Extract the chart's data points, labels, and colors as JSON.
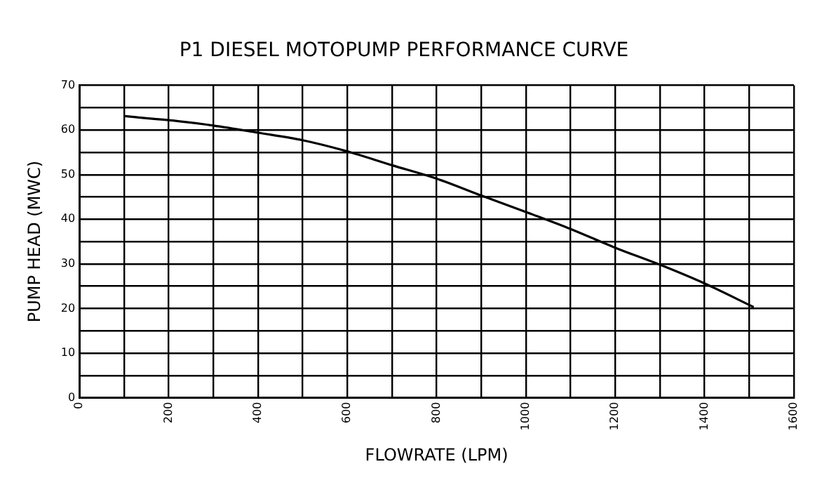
{
  "chart_data": {
    "type": "line",
    "title": "P1 DIESEL MOTOPUMP PERFORMANCE CURVE",
    "xlabel": "FLOWRATE (LPM)",
    "ylabel": "PUMP HEAD (MWC)",
    "x": [
      100,
      200,
      300,
      400,
      500,
      600,
      700,
      800,
      900,
      1000,
      1100,
      1200,
      1300,
      1400,
      1510
    ],
    "series": [
      {
        "color": "#000000",
        "values": [
          63.1,
          62.2,
          61,
          59.4,
          57.7,
          55.2,
          52.1,
          49.1,
          45.3,
          41.6,
          37.8,
          33.6,
          29.8,
          25.6,
          20.3
        ]
      }
    ],
    "xlim": [
      0,
      1600
    ],
    "xticks": [
      0,
      {
        "value": 100,
        "label": null
      },
      200,
      {
        "value": 300,
        "label": null
      },
      400,
      {
        "value": 500,
        "label": null
      },
      600,
      {
        "value": 700,
        "label": null
      },
      800,
      {
        "value": 900,
        "label": null
      },
      1000,
      {
        "value": 1100,
        "label": null
      },
      1200,
      {
        "value": 1300,
        "label": null
      },
      1400,
      {
        "value": 1500,
        "label": null
      },
      1600
    ],
    "ylim": [
      0,
      70
    ],
    "yticks": [
      0,
      {
        "value": 5,
        "label": null
      },
      10,
      {
        "value": 15,
        "label": null
      },
      20,
      {
        "value": 25,
        "label": null
      },
      30,
      {
        "value": 35,
        "label": null
      },
      40,
      {
        "value": 45,
        "label": null
      },
      50,
      {
        "value": 55,
        "label": null
      },
      60,
      {
        "value": 65,
        "label": null
      },
      70
    ],
    "grid": true,
    "legend": false,
    "marker": "none",
    "line_style": "solid"
  }
}
